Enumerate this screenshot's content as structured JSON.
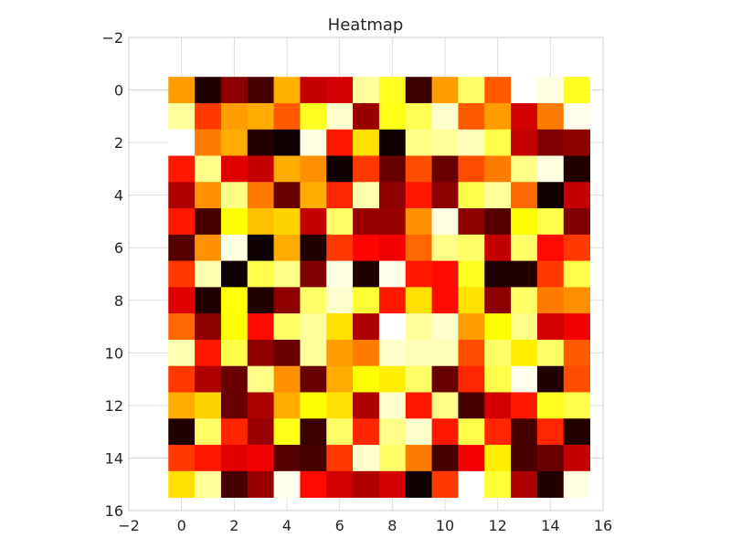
{
  "chart_data": {
    "type": "heatmap",
    "title": "Heatmap",
    "xlabel": "",
    "ylabel": "",
    "colormap": "hot",
    "xlim": [
      -2,
      16
    ],
    "ylim": [
      16,
      -2
    ],
    "y_inverted": true,
    "grid": true,
    "x_ticks": [
      -2,
      0,
      2,
      4,
      6,
      8,
      10,
      12,
      14,
      16
    ],
    "y_ticks": [
      -2,
      0,
      2,
      4,
      6,
      8,
      10,
      12,
      14,
      16
    ],
    "x_tick_labels": [
      "−2",
      "0",
      "2",
      "4",
      "6",
      "8",
      "10",
      "12",
      "14",
      "16"
    ],
    "y_tick_labels": [
      "−2",
      "0",
      "2",
      "4",
      "6",
      "8",
      "10",
      "12",
      "14",
      "16"
    ],
    "rows": 16,
    "cols": 16,
    "values": [
      [
        0.6,
        0.05,
        0.2,
        0.1,
        0.63,
        0.28,
        0.3,
        0.9,
        0.78,
        0.08,
        0.6,
        0.85,
        0.5,
        1.0,
        0.97,
        0.78
      ],
      [
        0.9,
        0.45,
        0.6,
        0.62,
        0.5,
        0.78,
        0.95,
        0.22,
        0.77,
        0.83,
        0.95,
        0.5,
        0.6,
        0.3,
        0.55,
        0.98
      ],
      [
        1.0,
        0.55,
        0.62,
        0.05,
        0.02,
        0.97,
        0.4,
        0.7,
        0.02,
        0.88,
        0.9,
        0.93,
        0.82,
        0.28,
        0.18,
        0.2
      ],
      [
        0.4,
        0.88,
        0.32,
        0.28,
        0.62,
        0.58,
        0.02,
        0.45,
        0.15,
        0.48,
        0.15,
        0.48,
        0.55,
        0.88,
        0.97,
        0.05
      ],
      [
        0.25,
        0.58,
        0.88,
        0.55,
        0.15,
        0.62,
        0.42,
        0.92,
        0.2,
        0.4,
        0.2,
        0.82,
        0.9,
        0.52,
        0.02,
        0.28
      ],
      [
        0.4,
        0.1,
        0.75,
        0.65,
        0.68,
        0.28,
        0.85,
        0.22,
        0.22,
        0.58,
        0.97,
        0.2,
        0.12,
        0.75,
        0.82,
        0.18
      ],
      [
        0.12,
        0.58,
        0.97,
        0.02,
        0.62,
        0.05,
        0.45,
        0.37,
        0.35,
        0.52,
        0.88,
        0.85,
        0.28,
        0.85,
        0.38,
        0.45
      ],
      [
        0.45,
        0.92,
        0.02,
        0.82,
        0.88,
        0.18,
        0.97,
        0.05,
        0.98,
        0.4,
        0.38,
        0.78,
        0.05,
        0.05,
        0.45,
        0.82
      ],
      [
        0.32,
        0.05,
        0.75,
        0.05,
        0.2,
        0.85,
        0.95,
        0.8,
        0.4,
        0.7,
        0.38,
        0.7,
        0.2,
        0.85,
        0.55,
        0.58
      ],
      [
        0.52,
        0.2,
        0.75,
        0.38,
        0.85,
        0.9,
        0.7,
        0.25,
        1.0,
        0.9,
        0.95,
        0.6,
        0.75,
        0.88,
        0.3,
        0.35
      ],
      [
        0.92,
        0.4,
        0.82,
        0.2,
        0.15,
        0.9,
        0.6,
        0.55,
        0.95,
        0.93,
        0.93,
        0.48,
        0.85,
        0.72,
        0.85,
        0.5
      ],
      [
        0.45,
        0.25,
        0.15,
        0.88,
        0.58,
        0.15,
        0.62,
        0.75,
        0.72,
        0.85,
        0.15,
        0.42,
        0.82,
        0.98,
        0.05,
        0.48
      ],
      [
        0.62,
        0.68,
        0.15,
        0.25,
        0.62,
        0.75,
        0.7,
        0.25,
        0.95,
        0.4,
        0.88,
        0.1,
        0.3,
        0.4,
        0.78,
        0.82
      ],
      [
        0.05,
        0.85,
        0.42,
        0.22,
        0.77,
        0.08,
        0.85,
        0.42,
        0.88,
        0.95,
        0.4,
        0.82,
        0.42,
        0.1,
        0.42,
        0.05
      ],
      [
        0.45,
        0.4,
        0.32,
        0.35,
        0.12,
        0.1,
        0.45,
        0.95,
        0.85,
        0.55,
        0.1,
        0.35,
        0.72,
        0.1,
        0.15,
        0.28
      ],
      [
        0.7,
        0.9,
        0.1,
        0.22,
        0.98,
        0.38,
        0.3,
        0.25,
        0.3,
        0.02,
        0.45,
        1.0,
        0.8,
        0.25,
        0.05,
        0.97
      ]
    ]
  }
}
